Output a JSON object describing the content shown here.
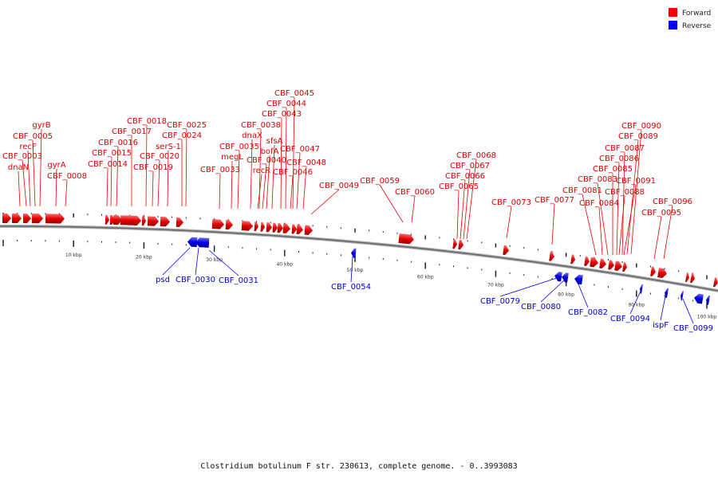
{
  "caption": "Clostridium botulinum F str. 230613, complete genome. - 0..3993083",
  "legend": [
    {
      "label": "Forward",
      "color": "#ee0000"
    },
    {
      "label": "Reverse",
      "color": "#0000ee"
    }
  ],
  "colors": {
    "forward": "#ee0000",
    "reverse": "#0000ee",
    "backbone": "#888888"
  },
  "scale_labels": [
    "10 kbp",
    "20 kbp",
    "30 kbp",
    "40 kbp",
    "50 kbp",
    "60 kbp",
    "70 kbp",
    "80 kbp",
    "90 kbp",
    "100 kbp"
  ],
  "forward_labels": [
    "gyrB",
    "CBF_0005",
    "recF",
    "CBF_0003",
    "dnaN",
    "gyrA",
    "CBF_0008",
    "CBF_0018",
    "CBF_0017",
    "CBF_0016",
    "CBF_0015",
    "CBF_0014",
    "CBF_0025",
    "CBF_0024",
    "serS-1",
    "CBF_0020",
    "CBF_0019",
    "CBF_0045",
    "CBF_0044",
    "CBF_0043",
    "CBF_0038",
    "dnaX",
    "CBF_0035",
    "megL",
    "CBF_0033",
    "sfsA",
    "bofA",
    "CBF_0040",
    "recR",
    "CBF_0047",
    "CBF_0048",
    "CBF_0046",
    "CBF_0049",
    "CBF_0059",
    "CBF_0060",
    "CBF_0068",
    "CBF_0067",
    "CBF_0066",
    "CBF_0065",
    "CBF_0073",
    "CBF_0077",
    "CBF_0090",
    "CBF_0089",
    "CBF_0087",
    "CBF_0086",
    "CBF_0085",
    "CBF_0083",
    "CBF_0081",
    "CBF_0091",
    "CBF_0088",
    "CBF_0084",
    "CBF_0096",
    "CBF_0095"
  ],
  "reverse_labels": [
    "psd",
    "CBF_0030",
    "CBF_0031",
    "CBF_0054",
    "CBF_0079",
    "CBF_0080",
    "CBF_0082",
    "CBF_0094",
    "ispF",
    "CBF_0099"
  ]
}
